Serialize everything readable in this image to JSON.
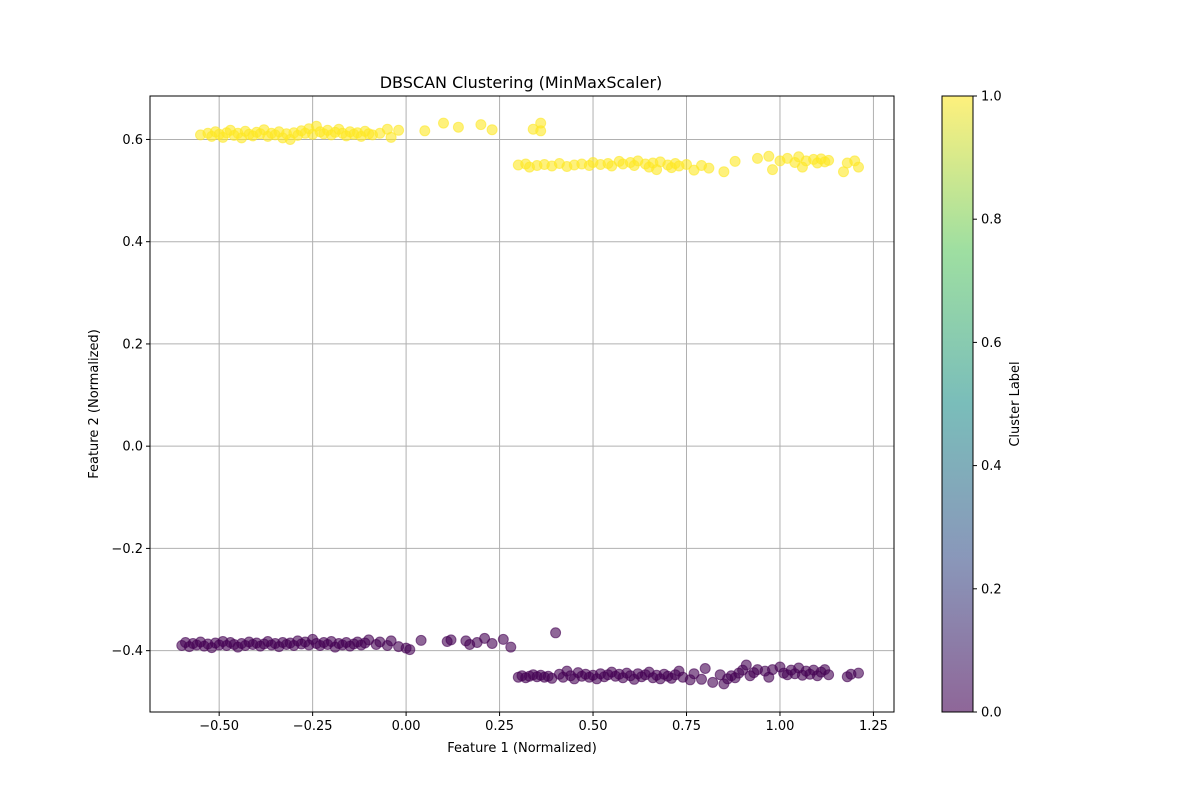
{
  "chart_data": {
    "type": "scatter",
    "title": "DBSCAN Clustering (MinMaxScaler)",
    "xlabel": "Feature 1 (Normalized)",
    "ylabel": "Feature 2 (Normalized)",
    "xlim": [
      -0.685,
      1.305
    ],
    "ylim": [
      -0.52,
      0.685
    ],
    "x_ticks": [
      -0.5,
      -0.25,
      0.0,
      0.25,
      0.5,
      0.75,
      1.0,
      1.25
    ],
    "x_tick_labels": [
      "−0.50",
      "−0.25",
      "0.00",
      "0.25",
      "0.50",
      "0.75",
      "1.00",
      "1.25"
    ],
    "y_ticks": [
      -0.4,
      -0.2,
      0.0,
      0.2,
      0.4,
      0.6
    ],
    "y_tick_labels": [
      "−0.4",
      "−0.2",
      "0.0",
      "0.2",
      "0.4",
      "0.6"
    ],
    "grid": true,
    "colormap": "viridis",
    "colorbar": {
      "label": "Cluster Label",
      "range": [
        0.0,
        1.0
      ],
      "ticks": [
        0.0,
        0.2,
        0.4,
        0.6,
        0.8,
        1.0
      ],
      "tick_labels": [
        "0.0",
        "0.2",
        "0.4",
        "0.6",
        "0.8",
        "1.0"
      ],
      "colors": [
        "#440154",
        "#3b528b",
        "#21918c",
        "#5ec962",
        "#fde725"
      ]
    },
    "marker_alpha": 0.6,
    "series": [
      {
        "cluster_label": 1,
        "color": "#fde725",
        "points": [
          [
            -0.55,
            0.609
          ],
          [
            -0.53,
            0.612
          ],
          [
            -0.52,
            0.606
          ],
          [
            -0.51,
            0.615
          ],
          [
            -0.5,
            0.61
          ],
          [
            -0.49,
            0.604
          ],
          [
            -0.48,
            0.613
          ],
          [
            -0.47,
            0.618
          ],
          [
            -0.46,
            0.608
          ],
          [
            -0.45,
            0.612
          ],
          [
            -0.44,
            0.603
          ],
          [
            -0.43,
            0.616
          ],
          [
            -0.42,
            0.61
          ],
          [
            -0.41,
            0.607
          ],
          [
            -0.4,
            0.614
          ],
          [
            -0.39,
            0.611
          ],
          [
            -0.38,
            0.619
          ],
          [
            -0.37,
            0.606
          ],
          [
            -0.36,
            0.612
          ],
          [
            -0.35,
            0.609
          ],
          [
            -0.34,
            0.615
          ],
          [
            -0.33,
            0.603
          ],
          [
            -0.32,
            0.611
          ],
          [
            -0.31,
            0.6
          ],
          [
            -0.3,
            0.613
          ],
          [
            -0.29,
            0.608
          ],
          [
            -0.28,
            0.617
          ],
          [
            -0.27,
            0.612
          ],
          [
            -0.26,
            0.621
          ],
          [
            -0.25,
            0.61
          ],
          [
            -0.24,
            0.626
          ],
          [
            -0.23,
            0.615
          ],
          [
            -0.22,
            0.611
          ],
          [
            -0.21,
            0.618
          ],
          [
            -0.2,
            0.609
          ],
          [
            -0.19,
            0.614
          ],
          [
            -0.18,
            0.62
          ],
          [
            -0.17,
            0.612
          ],
          [
            -0.16,
            0.607
          ],
          [
            -0.15,
            0.615
          ],
          [
            -0.14,
            0.61
          ],
          [
            -0.13,
            0.613
          ],
          [
            -0.12,
            0.606
          ],
          [
            -0.11,
            0.616
          ],
          [
            -0.1,
            0.611
          ],
          [
            -0.09,
            0.609
          ],
          [
            -0.07,
            0.612
          ],
          [
            -0.05,
            0.62
          ],
          [
            -0.04,
            0.604
          ],
          [
            -0.02,
            0.618
          ],
          [
            0.05,
            0.617
          ],
          [
            0.1,
            0.632
          ],
          [
            0.14,
            0.624
          ],
          [
            0.2,
            0.629
          ],
          [
            0.23,
            0.619
          ],
          [
            0.34,
            0.62
          ],
          [
            0.36,
            0.617
          ],
          [
            0.36,
            0.632
          ],
          [
            0.3,
            0.55
          ],
          [
            0.32,
            0.552
          ],
          [
            0.33,
            0.546
          ],
          [
            0.35,
            0.549
          ],
          [
            0.37,
            0.551
          ],
          [
            0.39,
            0.548
          ],
          [
            0.41,
            0.553
          ],
          [
            0.43,
            0.547
          ],
          [
            0.45,
            0.55
          ],
          [
            0.47,
            0.552
          ],
          [
            0.49,
            0.549
          ],
          [
            0.5,
            0.555
          ],
          [
            0.52,
            0.551
          ],
          [
            0.54,
            0.553
          ],
          [
            0.55,
            0.548
          ],
          [
            0.57,
            0.557
          ],
          [
            0.58,
            0.552
          ],
          [
            0.6,
            0.555
          ],
          [
            0.61,
            0.549
          ],
          [
            0.62,
            0.558
          ],
          [
            0.64,
            0.552
          ],
          [
            0.65,
            0.546
          ],
          [
            0.66,
            0.554
          ],
          [
            0.67,
            0.541
          ],
          [
            0.68,
            0.556
          ],
          [
            0.7,
            0.55
          ],
          [
            0.71,
            0.545
          ],
          [
            0.72,
            0.553
          ],
          [
            0.73,
            0.548
          ],
          [
            0.75,
            0.551
          ],
          [
            0.77,
            0.54
          ],
          [
            0.79,
            0.549
          ],
          [
            0.81,
            0.544
          ],
          [
            0.85,
            0.537
          ],
          [
            0.88,
            0.557
          ],
          [
            0.94,
            0.563
          ],
          [
            0.97,
            0.567
          ],
          [
            0.98,
            0.541
          ],
          [
            1.0,
            0.558
          ],
          [
            1.02,
            0.563
          ],
          [
            1.04,
            0.555
          ],
          [
            1.05,
            0.566
          ],
          [
            1.06,
            0.546
          ],
          [
            1.07,
            0.558
          ],
          [
            1.09,
            0.561
          ],
          [
            1.1,
            0.554
          ],
          [
            1.11,
            0.562
          ],
          [
            1.12,
            0.556
          ],
          [
            1.13,
            0.559
          ],
          [
            1.17,
            0.537
          ],
          [
            1.18,
            0.554
          ],
          [
            1.2,
            0.558
          ],
          [
            1.21,
            0.546
          ]
        ]
      },
      {
        "cluster_label": 0,
        "color": "#440154",
        "points": [
          [
            -0.6,
            -0.39
          ],
          [
            -0.59,
            -0.384
          ],
          [
            -0.58,
            -0.392
          ],
          [
            -0.57,
            -0.386
          ],
          [
            -0.56,
            -0.389
          ],
          [
            -0.55,
            -0.383
          ],
          [
            -0.54,
            -0.391
          ],
          [
            -0.53,
            -0.387
          ],
          [
            -0.52,
            -0.394
          ],
          [
            -0.51,
            -0.385
          ],
          [
            -0.5,
            -0.389
          ],
          [
            -0.49,
            -0.382
          ],
          [
            -0.48,
            -0.39
          ],
          [
            -0.47,
            -0.384
          ],
          [
            -0.46,
            -0.388
          ],
          [
            -0.45,
            -0.393
          ],
          [
            -0.44,
            -0.386
          ],
          [
            -0.43,
            -0.39
          ],
          [
            -0.42,
            -0.383
          ],
          [
            -0.41,
            -0.388
          ],
          [
            -0.4,
            -0.385
          ],
          [
            -0.39,
            -0.391
          ],
          [
            -0.38,
            -0.387
          ],
          [
            -0.37,
            -0.382
          ],
          [
            -0.36,
            -0.389
          ],
          [
            -0.35,
            -0.386
          ],
          [
            -0.34,
            -0.392
          ],
          [
            -0.33,
            -0.384
          ],
          [
            -0.32,
            -0.388
          ],
          [
            -0.31,
            -0.385
          ],
          [
            -0.3,
            -0.39
          ],
          [
            -0.29,
            -0.381
          ],
          [
            -0.28,
            -0.387
          ],
          [
            -0.27,
            -0.383
          ],
          [
            -0.26,
            -0.389
          ],
          [
            -0.25,
            -0.378
          ],
          [
            -0.24,
            -0.386
          ],
          [
            -0.23,
            -0.39
          ],
          [
            -0.22,
            -0.384
          ],
          [
            -0.21,
            -0.388
          ],
          [
            -0.2,
            -0.382
          ],
          [
            -0.19,
            -0.393
          ],
          [
            -0.18,
            -0.386
          ],
          [
            -0.17,
            -0.389
          ],
          [
            -0.16,
            -0.384
          ],
          [
            -0.15,
            -0.391
          ],
          [
            -0.14,
            -0.387
          ],
          [
            -0.13,
            -0.383
          ],
          [
            -0.12,
            -0.389
          ],
          [
            -0.11,
            -0.385
          ],
          [
            -0.1,
            -0.379
          ],
          [
            -0.08,
            -0.388
          ],
          [
            -0.07,
            -0.383
          ],
          [
            -0.05,
            -0.39
          ],
          [
            -0.04,
            -0.381
          ],
          [
            -0.02,
            -0.392
          ],
          [
            0.0,
            -0.395
          ],
          [
            0.01,
            -0.398
          ],
          [
            0.04,
            -0.38
          ],
          [
            0.11,
            -0.382
          ],
          [
            0.12,
            -0.379
          ],
          [
            0.16,
            -0.381
          ],
          [
            0.17,
            -0.388
          ],
          [
            0.19,
            -0.384
          ],
          [
            0.21,
            -0.376
          ],
          [
            0.23,
            -0.386
          ],
          [
            0.26,
            -0.378
          ],
          [
            0.28,
            -0.393
          ],
          [
            0.4,
            -0.365
          ],
          [
            0.3,
            -0.452
          ],
          [
            0.31,
            -0.449
          ],
          [
            0.32,
            -0.453
          ],
          [
            0.33,
            -0.45
          ],
          [
            0.34,
            -0.447
          ],
          [
            0.35,
            -0.451
          ],
          [
            0.36,
            -0.448
          ],
          [
            0.37,
            -0.452
          ],
          [
            0.38,
            -0.45
          ],
          [
            0.39,
            -0.454
          ],
          [
            0.41,
            -0.446
          ],
          [
            0.42,
            -0.452
          ],
          [
            0.43,
            -0.44
          ],
          [
            0.44,
            -0.449
          ],
          [
            0.45,
            -0.455
          ],
          [
            0.46,
            -0.443
          ],
          [
            0.47,
            -0.45
          ],
          [
            0.48,
            -0.446
          ],
          [
            0.49,
            -0.452
          ],
          [
            0.5,
            -0.448
          ],
          [
            0.51,
            -0.455
          ],
          [
            0.52,
            -0.445
          ],
          [
            0.53,
            -0.451
          ],
          [
            0.54,
            -0.447
          ],
          [
            0.55,
            -0.442
          ],
          [
            0.56,
            -0.45
          ],
          [
            0.57,
            -0.446
          ],
          [
            0.58,
            -0.453
          ],
          [
            0.59,
            -0.444
          ],
          [
            0.6,
            -0.449
          ],
          [
            0.61,
            -0.456
          ],
          [
            0.62,
            -0.445
          ],
          [
            0.63,
            -0.451
          ],
          [
            0.64,
            -0.447
          ],
          [
            0.65,
            -0.442
          ],
          [
            0.66,
            -0.453
          ],
          [
            0.67,
            -0.448
          ],
          [
            0.68,
            -0.455
          ],
          [
            0.69,
            -0.446
          ],
          [
            0.7,
            -0.45
          ],
          [
            0.71,
            -0.454
          ],
          [
            0.72,
            -0.447
          ],
          [
            0.73,
            -0.44
          ],
          [
            0.74,
            -0.452
          ],
          [
            0.76,
            -0.457
          ],
          [
            0.77,
            -0.445
          ],
          [
            0.79,
            -0.456
          ],
          [
            0.8,
            -0.435
          ],
          [
            0.82,
            -0.462
          ],
          [
            0.84,
            -0.447
          ],
          [
            0.85,
            -0.465
          ],
          [
            0.86,
            -0.455
          ],
          [
            0.87,
            -0.449
          ],
          [
            0.88,
            -0.453
          ],
          [
            0.89,
            -0.444
          ],
          [
            0.9,
            -0.438
          ],
          [
            0.91,
            -0.428
          ],
          [
            0.92,
            -0.449
          ],
          [
            0.93,
            -0.443
          ],
          [
            0.94,
            -0.437
          ],
          [
            0.96,
            -0.44
          ],
          [
            0.97,
            -0.452
          ],
          [
            0.98,
            -0.437
          ],
          [
            1.0,
            -0.432
          ],
          [
            1.01,
            -0.444
          ],
          [
            1.02,
            -0.447
          ],
          [
            1.03,
            -0.438
          ],
          [
            1.04,
            -0.445
          ],
          [
            1.05,
            -0.434
          ],
          [
            1.06,
            -0.448
          ],
          [
            1.07,
            -0.44
          ],
          [
            1.08,
            -0.446
          ],
          [
            1.09,
            -0.438
          ],
          [
            1.1,
            -0.449
          ],
          [
            1.11,
            -0.442
          ],
          [
            1.12,
            -0.437
          ],
          [
            1.13,
            -0.447
          ],
          [
            1.18,
            -0.451
          ],
          [
            1.19,
            -0.446
          ],
          [
            1.21,
            -0.444
          ]
        ]
      }
    ]
  }
}
